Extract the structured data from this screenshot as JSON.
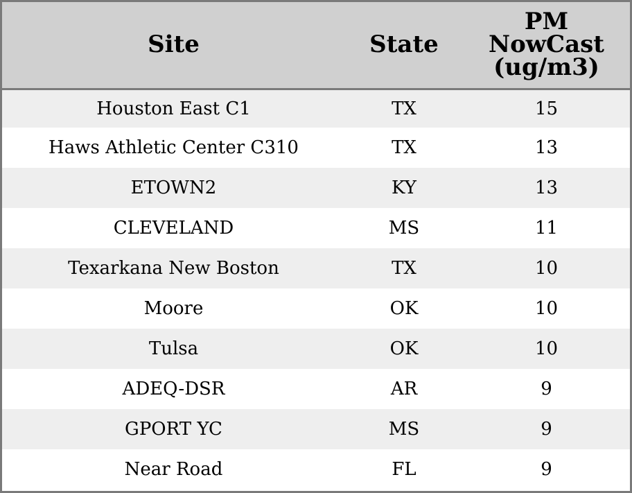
{
  "chart_data": {
    "type": "table",
    "columns": [
      "Site",
      "State",
      "PM NowCast (ug/m3)"
    ],
    "header_lines": {
      "site": "Site",
      "state": "State",
      "pm_line1": "PM",
      "pm_line2": "NowCast",
      "pm_line3": "(ug/m3)"
    },
    "rows": [
      {
        "site": "Houston East C1",
        "state": "TX",
        "pm": "15"
      },
      {
        "site": "Haws Athletic Center C310",
        "state": "TX",
        "pm": "13"
      },
      {
        "site": "ETOWN2",
        "state": "KY",
        "pm": "13"
      },
      {
        "site": "CLEVELAND",
        "state": "MS",
        "pm": "11"
      },
      {
        "site": "Texarkana New Boston",
        "state": "TX",
        "pm": "10"
      },
      {
        "site": "Moore",
        "state": "OK",
        "pm": "10"
      },
      {
        "site": "Tulsa",
        "state": "OK",
        "pm": "10"
      },
      {
        "site": "ADEQ-DSR",
        "state": "AR",
        "pm": "9"
      },
      {
        "site": "GPORT YC",
        "state": "MS",
        "pm": "9"
      },
      {
        "site": "Near Road",
        "state": "FL",
        "pm": "9"
      }
    ]
  },
  "colors": {
    "header_bg": "#d0d0d0",
    "row_stripe": "#eeeeee",
    "row_plain": "#ffffff",
    "border": "#7a7a7a",
    "text": "#000000"
  }
}
